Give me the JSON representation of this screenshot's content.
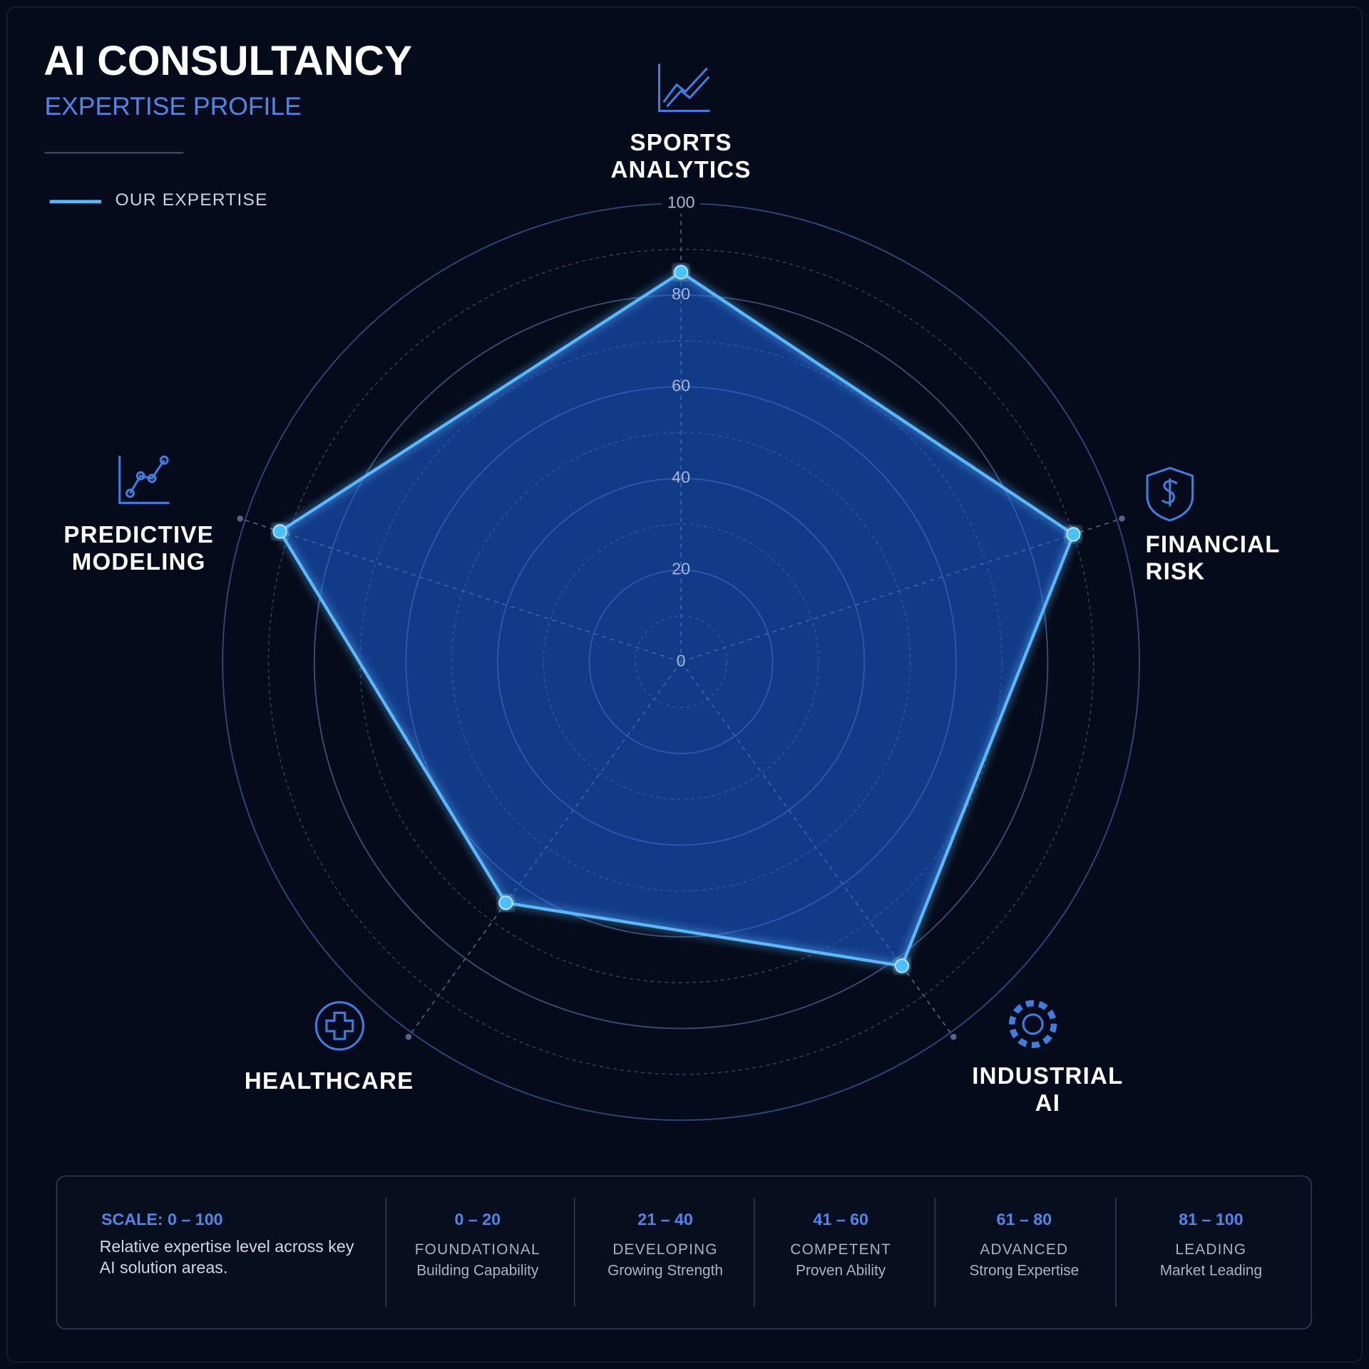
{
  "header": {
    "title": "AI CONSULTANCY",
    "subtitle": "EXPERTISE PROFILE"
  },
  "chart_data": {
    "type": "radar",
    "categories": [
      "SPORTS ANALYTICS",
      "FINANCIAL RISK",
      "INDUSTRIAL AI",
      "HEALTHCARE",
      "PREDICTIVE MODELING"
    ],
    "series": [
      {
        "name": "OUR EXPERTISE",
        "color": "#5ab8ff",
        "values": [
          85,
          90,
          82,
          65,
          92
        ]
      }
    ],
    "ylim": [
      0,
      100
    ],
    "yticks": [
      0,
      20,
      40,
      60,
      80,
      100
    ],
    "grid": true,
    "legend": "top-left"
  },
  "scale_legend": {
    "title": "SCALE: 0 – 100",
    "description": "Relative expertise level across key AI solution areas.",
    "bands": [
      {
        "range": "0 – 20",
        "level": "FOUNDATIONAL",
        "desc": "Building Capability"
      },
      {
        "range": "21 – 40",
        "level": "DEVELOPING",
        "desc": "Growing Strength"
      },
      {
        "range": "41 – 60",
        "level": "COMPETENT",
        "desc": "Proven Ability"
      },
      {
        "range": "61 – 80",
        "level": "ADVANCED",
        "desc": "Strong Expertise"
      },
      {
        "range": "81 – 100",
        "level": "LEADING",
        "desc": "Market Leading"
      }
    ]
  }
}
